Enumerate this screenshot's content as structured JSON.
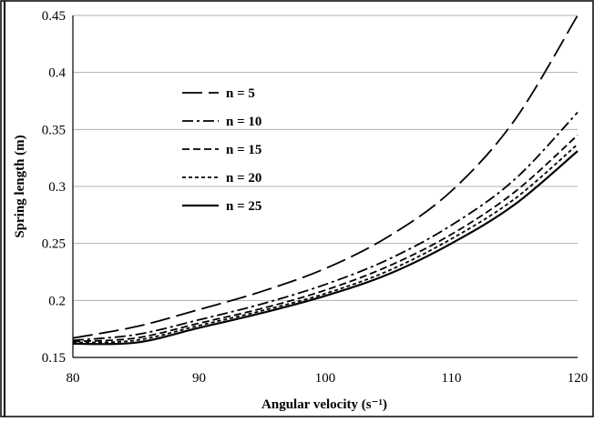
{
  "chart_data": {
    "type": "line",
    "title": "",
    "xlabel": "Angular velocity (s⁻¹)",
    "ylabel": "Spring length (m)",
    "xlim": [
      80,
      120
    ],
    "ylim": [
      0.15,
      0.45
    ],
    "x_ticks": [
      "80",
      "90",
      "100",
      "110",
      "120"
    ],
    "y_ticks": [
      "0.15",
      "0.2",
      "0.25",
      "0.3",
      "0.35",
      "0.4",
      "0.45"
    ],
    "grid": "horizontal",
    "legend_position": "upper-left",
    "x": [
      80,
      85,
      90,
      95,
      100,
      105,
      110,
      115,
      120
    ],
    "series": [
      {
        "name": "n = 5",
        "dash": "long-dash",
        "values": [
          0.167,
          0.177,
          0.192,
          0.208,
          0.228,
          0.256,
          0.296,
          0.358,
          0.45
        ]
      },
      {
        "name": "n = 10",
        "dash": "dash-dot",
        "values": [
          0.165,
          0.17,
          0.183,
          0.197,
          0.214,
          0.236,
          0.266,
          0.306,
          0.365
        ]
      },
      {
        "name": "n = 15",
        "dash": "dash",
        "values": [
          0.164,
          0.167,
          0.18,
          0.193,
          0.209,
          0.23,
          0.258,
          0.295,
          0.345
        ]
      },
      {
        "name": "n = 20",
        "dash": "short-dash",
        "values": [
          0.163,
          0.165,
          0.178,
          0.191,
          0.206,
          0.226,
          0.254,
          0.289,
          0.337
        ]
      },
      {
        "name": "n = 25",
        "dash": "solid",
        "values": [
          0.162,
          0.163,
          0.176,
          0.189,
          0.204,
          0.223,
          0.25,
          0.284,
          0.331
        ]
      }
    ]
  }
}
